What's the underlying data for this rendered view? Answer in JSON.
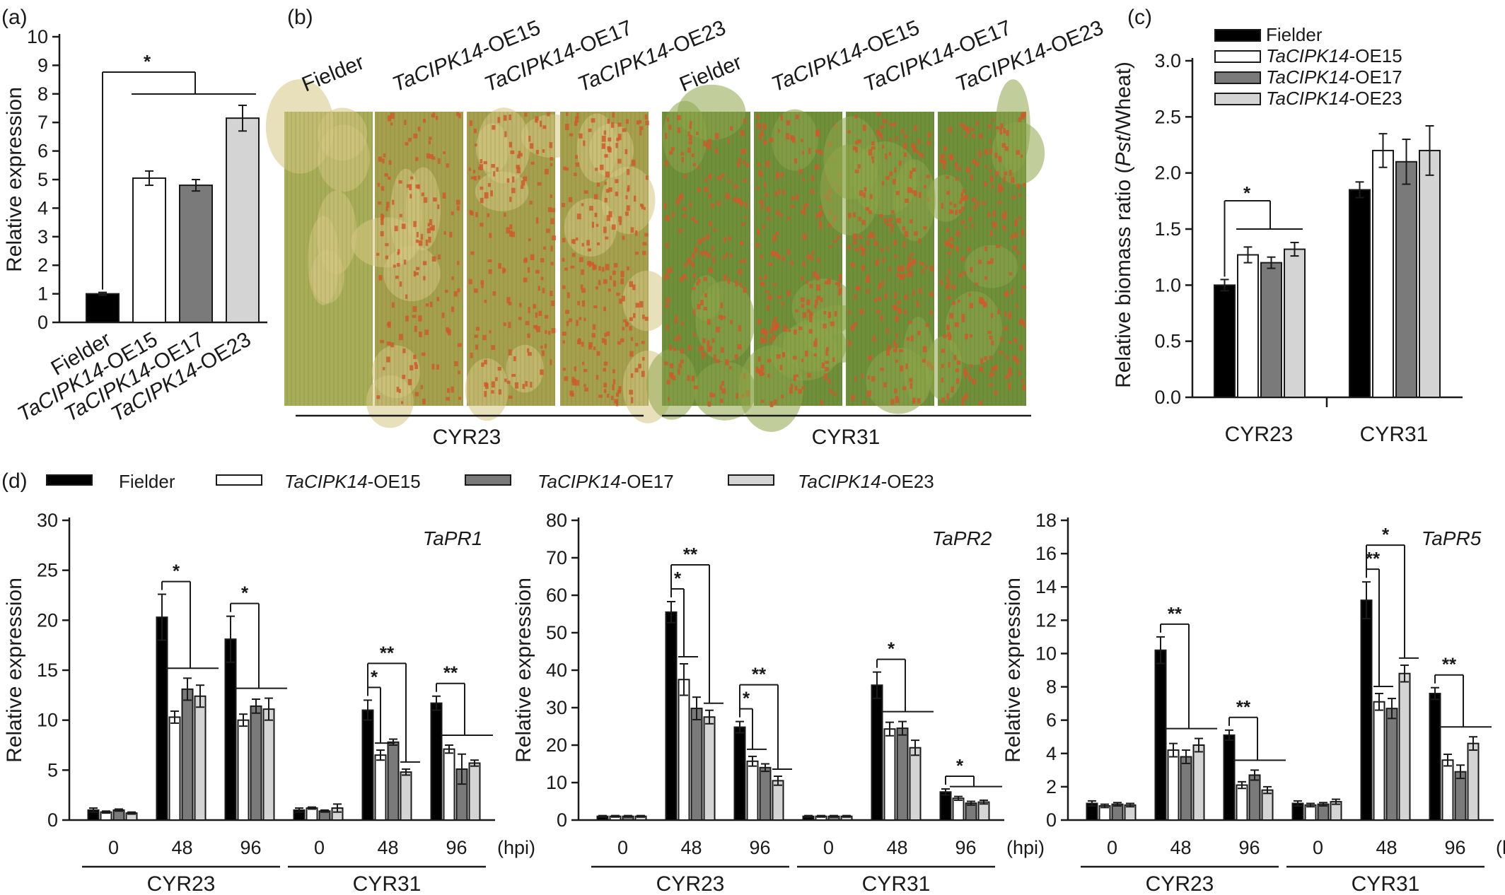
{
  "colors": {
    "Fielder": "#000000",
    "OE15": "#ffffff",
    "OE17": "#7a7a7a",
    "OE23": "#d4d4d4",
    "axis": "#1a1a1a",
    "leaf_green": "#7d9a40",
    "leaf_yellow": "#c7b160",
    "pustule": "#cf5a2a"
  },
  "legend": [
    {
      "italic": "",
      "plain": "Fielder",
      "key": "Fielder"
    },
    {
      "italic": "TaCIPK14",
      "plain": "-OE15",
      "key": "OE15"
    },
    {
      "italic": "TaCIPK14",
      "plain": "-OE17",
      "key": "OE17"
    },
    {
      "italic": "TaCIPK14",
      "plain": "-OE23",
      "key": "OE23"
    }
  ],
  "panel_b": {
    "label": "(b)",
    "leaf_labels": [
      {
        "italic": "",
        "plain": "Fielder"
      },
      {
        "italic": "TaCIPK14",
        "plain": "-OE15"
      },
      {
        "italic": "TaCIPK14",
        "plain": "-OE17"
      },
      {
        "italic": "TaCIPK14",
        "plain": "-OE23"
      },
      {
        "italic": "",
        "plain": "Fielder"
      },
      {
        "italic": "TaCIPK14",
        "plain": "-OE15"
      },
      {
        "italic": "TaCIPK14",
        "plain": "-OE17"
      },
      {
        "italic": "TaCIPK14",
        "plain": "-OE23"
      }
    ],
    "groups": [
      "CYR23",
      "CYR31"
    ],
    "leaf_infection": [
      0.0,
      0.55,
      0.6,
      0.8,
      0.7,
      0.8,
      0.8,
      0.85
    ]
  },
  "chart_data": [
    {
      "id": "a",
      "label": "(a)",
      "type": "bar",
      "categories": [
        "Fielder",
        "TaCIPK14-OE15",
        "TaCIPK14-OE17",
        "TaCIPK14-OE23"
      ],
      "category_parts": [
        {
          "italic": "",
          "plain": "Fielder"
        },
        {
          "italic": "TaCIPK14",
          "plain": "-OE15"
        },
        {
          "italic": "TaCIPK14",
          "plain": "-OE17"
        },
        {
          "italic": "TaCIPK14",
          "plain": "-OE23"
        }
      ],
      "values": [
        1.0,
        5.05,
        4.8,
        7.15
      ],
      "errors": [
        0.05,
        0.25,
        0.2,
        0.45
      ],
      "ylabel": "Relative expression",
      "ylim": [
        0,
        10
      ],
      "yticks": [
        "0",
        "1",
        "2",
        "3",
        "4",
        "5",
        "6",
        "7",
        "8",
        "9",
        "10"
      ],
      "significance": "*"
    },
    {
      "id": "c",
      "label": "(c)",
      "type": "bar",
      "categories": [
        "CYR23",
        "CYR31"
      ],
      "series": [
        {
          "name": "Fielder",
          "values": [
            1.0,
            1.85
          ],
          "errors": [
            0.05,
            0.07
          ]
        },
        {
          "name": "TaCIPK14-OE15",
          "values": [
            1.27,
            2.2
          ],
          "errors": [
            0.07,
            0.15
          ]
        },
        {
          "name": "TaCIPK14-OE17",
          "values": [
            1.2,
            2.1
          ],
          "errors": [
            0.05,
            0.2
          ]
        },
        {
          "name": "TaCIPK14-OE23",
          "values": [
            1.32,
            2.2
          ],
          "errors": [
            0.06,
            0.22
          ]
        }
      ],
      "ylabel_parts": {
        "pre": "Relative biomass ratio (",
        "italic": "Pst",
        "post": "/Wheat)"
      },
      "ylim": [
        0,
        3
      ],
      "yticks": [
        "0.0",
        "0.5",
        "1.0",
        "1.5",
        "2.0",
        "2.5",
        "3.0"
      ],
      "significance": "*"
    },
    {
      "id": "d1",
      "label": "(d)",
      "type": "bar",
      "gene": "TaPR1",
      "ylabel": "Relative expression",
      "ylim": [
        0,
        30
      ],
      "yticks": [
        "0",
        "5",
        "10",
        "15",
        "20",
        "25",
        "30"
      ],
      "timepoints": [
        "0",
        "48",
        "96"
      ],
      "time_unit": "(hpi)",
      "strains": [
        "CYR23",
        "CYR31"
      ],
      "values": [
        [
          [
            1.0,
            0.8,
            1.0,
            0.7
          ],
          [
            20.3,
            10.3,
            13.1,
            12.4
          ],
          [
            18.1,
            10.0,
            11.4,
            11.1
          ]
        ],
        [
          [
            1.0,
            1.2,
            0.9,
            1.2
          ],
          [
            11.0,
            6.5,
            7.8,
            4.8
          ],
          [
            11.7,
            7.1,
            5.1,
            5.7
          ]
        ]
      ],
      "errors": [
        [
          [
            0.2,
            0.1,
            0.1,
            0.1
          ],
          [
            2.3,
            0.6,
            1.1,
            1.1
          ],
          [
            2.3,
            0.6,
            0.7,
            1.1
          ]
        ],
        [
          [
            0.2,
            0.1,
            0.1,
            0.4
          ],
          [
            1.0,
            0.5,
            0.3,
            0.3
          ],
          [
            0.7,
            0.4,
            1.5,
            0.3
          ]
        ]
      ],
      "significance": [
        {
          "strain": 0,
          "time": 1,
          "mark": "*"
        },
        {
          "strain": 0,
          "time": 2,
          "mark": "*"
        },
        {
          "strain": 1,
          "time": 1,
          "mark": "*",
          "target": 1
        },
        {
          "strain": 1,
          "time": 1,
          "mark": "**",
          "target": 3
        },
        {
          "strain": 1,
          "time": 2,
          "mark": "**"
        }
      ]
    },
    {
      "id": "d2",
      "label": "",
      "type": "bar",
      "gene": "TaPR2",
      "ylabel": "Relative expression",
      "ylim": [
        0,
        80
      ],
      "yticks": [
        "0",
        "10",
        "20",
        "30",
        "40",
        "50",
        "60",
        "70",
        "80"
      ],
      "timepoints": [
        "0",
        "48",
        "96"
      ],
      "time_unit": "(hpi)",
      "strains": [
        "CYR23",
        "CYR31"
      ],
      "values": [
        [
          [
            1.0,
            1.0,
            1.0,
            1.0
          ],
          [
            55.5,
            37.5,
            29.8,
            27.5
          ],
          [
            24.8,
            15.7,
            14.0,
            10.5
          ]
        ],
        [
          [
            1.0,
            1.0,
            1.0,
            1.0
          ],
          [
            36.0,
            24.3,
            24.5,
            19.3
          ],
          [
            7.5,
            5.8,
            4.5,
            4.8
          ]
        ]
      ],
      "errors": [
        [
          [
            0.2,
            0.2,
            0.2,
            0.2
          ],
          [
            2.8,
            4.2,
            3.0,
            1.8
          ],
          [
            1.5,
            1.3,
            1.0,
            1.2
          ]
        ],
        [
          [
            0.2,
            0.2,
            0.2,
            0.2
          ],
          [
            3.5,
            1.8,
            1.8,
            2.0
          ],
          [
            0.8,
            0.5,
            0.5,
            0.5
          ]
        ]
      ],
      "significance": [
        {
          "strain": 0,
          "time": 1,
          "mark": "*",
          "target": 1
        },
        {
          "strain": 0,
          "time": 1,
          "mark": "**",
          "target": 3
        },
        {
          "strain": 0,
          "time": 2,
          "mark": "*",
          "target": 1
        },
        {
          "strain": 0,
          "time": 2,
          "mark": "**",
          "target": 3
        },
        {
          "strain": 1,
          "time": 1,
          "mark": "*"
        },
        {
          "strain": 1,
          "time": 2,
          "mark": "*"
        }
      ]
    },
    {
      "id": "d3",
      "label": "",
      "type": "bar",
      "gene": "TaPR5",
      "ylabel": "Relative expression",
      "ylim": [
        0,
        18
      ],
      "yticks": [
        "0",
        "2",
        "4",
        "6",
        "8",
        "10",
        "12",
        "14",
        "16",
        "18"
      ],
      "timepoints": [
        "0",
        "48",
        "96"
      ],
      "time_unit": "(hpi)",
      "strains": [
        "CYR23",
        "CYR31"
      ],
      "values": [
        [
          [
            1.0,
            0.85,
            0.95,
            0.9
          ],
          [
            10.2,
            4.2,
            3.8,
            4.5
          ],
          [
            5.1,
            2.1,
            2.7,
            1.8
          ]
        ],
        [
          [
            1.0,
            0.9,
            0.95,
            1.1
          ],
          [
            13.2,
            7.1,
            6.7,
            8.8
          ],
          [
            7.6,
            3.6,
            2.9,
            4.6
          ]
        ]
      ],
      "errors": [
        [
          [
            0.15,
            0.1,
            0.1,
            0.1
          ],
          [
            0.8,
            0.4,
            0.4,
            0.4
          ],
          [
            0.3,
            0.2,
            0.3,
            0.2
          ]
        ],
        [
          [
            0.15,
            0.1,
            0.1,
            0.15
          ],
          [
            1.1,
            0.5,
            0.6,
            0.5
          ],
          [
            0.35,
            0.35,
            0.4,
            0.4
          ]
        ]
      ],
      "significance": [
        {
          "strain": 0,
          "time": 1,
          "mark": "**"
        },
        {
          "strain": 0,
          "time": 2,
          "mark": "**"
        },
        {
          "strain": 1,
          "time": 1,
          "mark": "**",
          "target": 1
        },
        {
          "strain": 1,
          "time": 1,
          "mark": "*",
          "target": 3
        },
        {
          "strain": 1,
          "time": 2,
          "mark": "**"
        }
      ]
    }
  ]
}
